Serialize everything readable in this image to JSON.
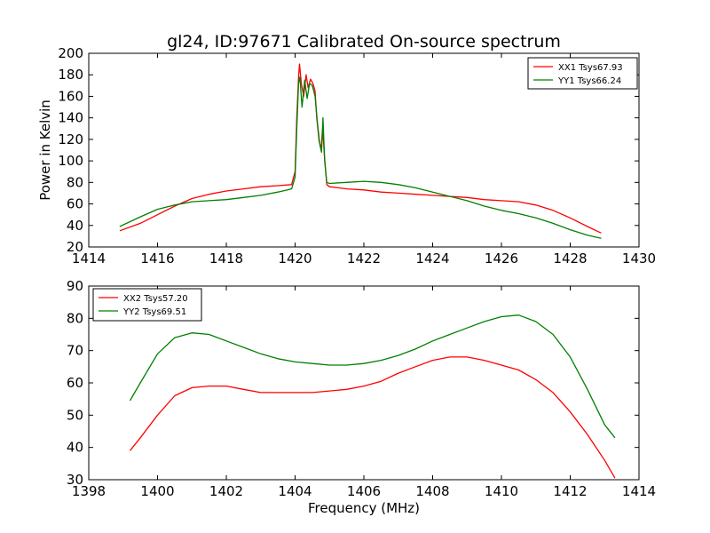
{
  "chart_data": [
    {
      "type": "line",
      "title": "gl24, ID:97671 Calibrated On-source spectrum",
      "ylabel": "Power in Kelvin",
      "xlabel": "",
      "xlim": [
        1414,
        1430
      ],
      "ylim": [
        20,
        200
      ],
      "xticks": [
        1414,
        1416,
        1418,
        1420,
        1422,
        1424,
        1426,
        1428,
        1430
      ],
      "yticks": [
        20,
        40,
        60,
        80,
        100,
        120,
        140,
        160,
        180,
        200
      ],
      "legend": "top-right",
      "series": [
        {
          "name": "XX1 Tsys67.93",
          "color": "#ff0000",
          "points": [
            [
              1414.9,
              35
            ],
            [
              1415.5,
              42
            ],
            [
              1416.0,
              50
            ],
            [
              1416.5,
              58
            ],
            [
              1417.0,
              65
            ],
            [
              1417.5,
              69
            ],
            [
              1418.0,
              72
            ],
            [
              1418.5,
              74
            ],
            [
              1419.0,
              76
            ],
            [
              1419.5,
              77
            ],
            [
              1419.9,
              78
            ],
            [
              1420.0,
              90
            ],
            [
              1420.05,
              140
            ],
            [
              1420.1,
              178
            ],
            [
              1420.13,
              190
            ],
            [
              1420.18,
              172
            ],
            [
              1420.25,
              160
            ],
            [
              1420.32,
              180
            ],
            [
              1420.38,
              168
            ],
            [
              1420.45,
              176
            ],
            [
              1420.52,
              172
            ],
            [
              1420.58,
              165
            ],
            [
              1420.63,
              140
            ],
            [
              1420.7,
              118
            ],
            [
              1420.76,
              112
            ],
            [
              1420.8,
              130
            ],
            [
              1420.86,
              102
            ],
            [
              1420.92,
              78
            ],
            [
              1421.0,
              76
            ],
            [
              1421.5,
              74
            ],
            [
              1422.0,
              73
            ],
            [
              1422.5,
              71
            ],
            [
              1423.0,
              70
            ],
            [
              1423.5,
              69
            ],
            [
              1424.0,
              68
            ],
            [
              1424.5,
              67
            ],
            [
              1425.0,
              66
            ],
            [
              1425.5,
              64
            ],
            [
              1426.0,
              63
            ],
            [
              1426.5,
              62
            ],
            [
              1427.0,
              59
            ],
            [
              1427.5,
              54
            ],
            [
              1428.0,
              47
            ],
            [
              1428.5,
              39
            ],
            [
              1428.9,
              33
            ]
          ]
        },
        {
          "name": "YY1 Tsys66.24",
          "color": "#008000",
          "points": [
            [
              1414.9,
              39
            ],
            [
              1415.5,
              48
            ],
            [
              1416.0,
              55
            ],
            [
              1416.5,
              59
            ],
            [
              1417.0,
              62
            ],
            [
              1417.5,
              63
            ],
            [
              1418.0,
              64
            ],
            [
              1418.5,
              66
            ],
            [
              1419.0,
              68
            ],
            [
              1419.5,
              71
            ],
            [
              1419.9,
              74
            ],
            [
              1420.0,
              85
            ],
            [
              1420.05,
              130
            ],
            [
              1420.1,
              172
            ],
            [
              1420.14,
              178
            ],
            [
              1420.2,
              150
            ],
            [
              1420.28,
              175
            ],
            [
              1420.35,
              158
            ],
            [
              1420.42,
              172
            ],
            [
              1420.5,
              170
            ],
            [
              1420.58,
              160
            ],
            [
              1420.65,
              135
            ],
            [
              1420.72,
              115
            ],
            [
              1420.77,
              108
            ],
            [
              1420.81,
              140
            ],
            [
              1420.86,
              100
            ],
            [
              1420.92,
              80
            ],
            [
              1421.0,
              79
            ],
            [
              1421.5,
              80
            ],
            [
              1422.0,
              81
            ],
            [
              1422.5,
              80
            ],
            [
              1423.0,
              78
            ],
            [
              1423.5,
              75
            ],
            [
              1424.0,
              71
            ],
            [
              1424.5,
              67
            ],
            [
              1425.0,
              63
            ],
            [
              1425.5,
              58
            ],
            [
              1426.0,
              54
            ],
            [
              1426.5,
              51
            ],
            [
              1427.0,
              47
            ],
            [
              1427.5,
              42
            ],
            [
              1428.0,
              36
            ],
            [
              1428.5,
              31
            ],
            [
              1428.9,
              28
            ]
          ]
        }
      ]
    },
    {
      "type": "line",
      "title": "",
      "xlabel": "Frequency (MHz)",
      "ylabel": "",
      "xlim": [
        1398,
        1414
      ],
      "ylim": [
        30,
        90
      ],
      "xticks": [
        1398,
        1400,
        1402,
        1404,
        1406,
        1408,
        1410,
        1412,
        1414
      ],
      "yticks": [
        30,
        40,
        50,
        60,
        70,
        80,
        90
      ],
      "legend": "top-left",
      "series": [
        {
          "name": "XX2 Tsys57.20",
          "color": "#ff0000",
          "points": [
            [
              1399.2,
              39
            ],
            [
              1399.5,
              43
            ],
            [
              1400.0,
              50
            ],
            [
              1400.5,
              56
            ],
            [
              1401.0,
              58.5
            ],
            [
              1401.5,
              59
            ],
            [
              1402.0,
              59
            ],
            [
              1402.5,
              58
            ],
            [
              1403.0,
              57
            ],
            [
              1403.5,
              57
            ],
            [
              1404.0,
              57
            ],
            [
              1404.5,
              57
            ],
            [
              1405.0,
              57.5
            ],
            [
              1405.5,
              58
            ],
            [
              1406.0,
              59
            ],
            [
              1406.5,
              60.5
            ],
            [
              1407.0,
              63
            ],
            [
              1407.5,
              65
            ],
            [
              1408.0,
              67
            ],
            [
              1408.5,
              68
            ],
            [
              1409.0,
              68
            ],
            [
              1409.5,
              67
            ],
            [
              1410.0,
              65.5
            ],
            [
              1410.5,
              64
            ],
            [
              1411.0,
              61
            ],
            [
              1411.5,
              57
            ],
            [
              1412.0,
              51
            ],
            [
              1412.5,
              44
            ],
            [
              1413.0,
              36
            ],
            [
              1413.3,
              30.5
            ]
          ]
        },
        {
          "name": "YY2 Tsys69.51",
          "color": "#008000",
          "points": [
            [
              1399.2,
              54.5
            ],
            [
              1399.5,
              60
            ],
            [
              1400.0,
              69
            ],
            [
              1400.5,
              74
            ],
            [
              1401.0,
              75.5
            ],
            [
              1401.5,
              75
            ],
            [
              1402.0,
              73
            ],
            [
              1402.5,
              71
            ],
            [
              1403.0,
              69
            ],
            [
              1403.5,
              67.5
            ],
            [
              1404.0,
              66.5
            ],
            [
              1404.5,
              66
            ],
            [
              1405.0,
              65.5
            ],
            [
              1405.5,
              65.5
            ],
            [
              1406.0,
              66
            ],
            [
              1406.5,
              67
            ],
            [
              1407.0,
              68.5
            ],
            [
              1407.5,
              70.5
            ],
            [
              1408.0,
              73
            ],
            [
              1408.5,
              75
            ],
            [
              1409.0,
              77
            ],
            [
              1409.5,
              79
            ],
            [
              1410.0,
              80.5
            ],
            [
              1410.5,
              81
            ],
            [
              1411.0,
              79
            ],
            [
              1411.5,
              75
            ],
            [
              1412.0,
              68
            ],
            [
              1412.5,
              58
            ],
            [
              1413.0,
              47
            ],
            [
              1413.3,
              43
            ]
          ]
        }
      ]
    }
  ]
}
